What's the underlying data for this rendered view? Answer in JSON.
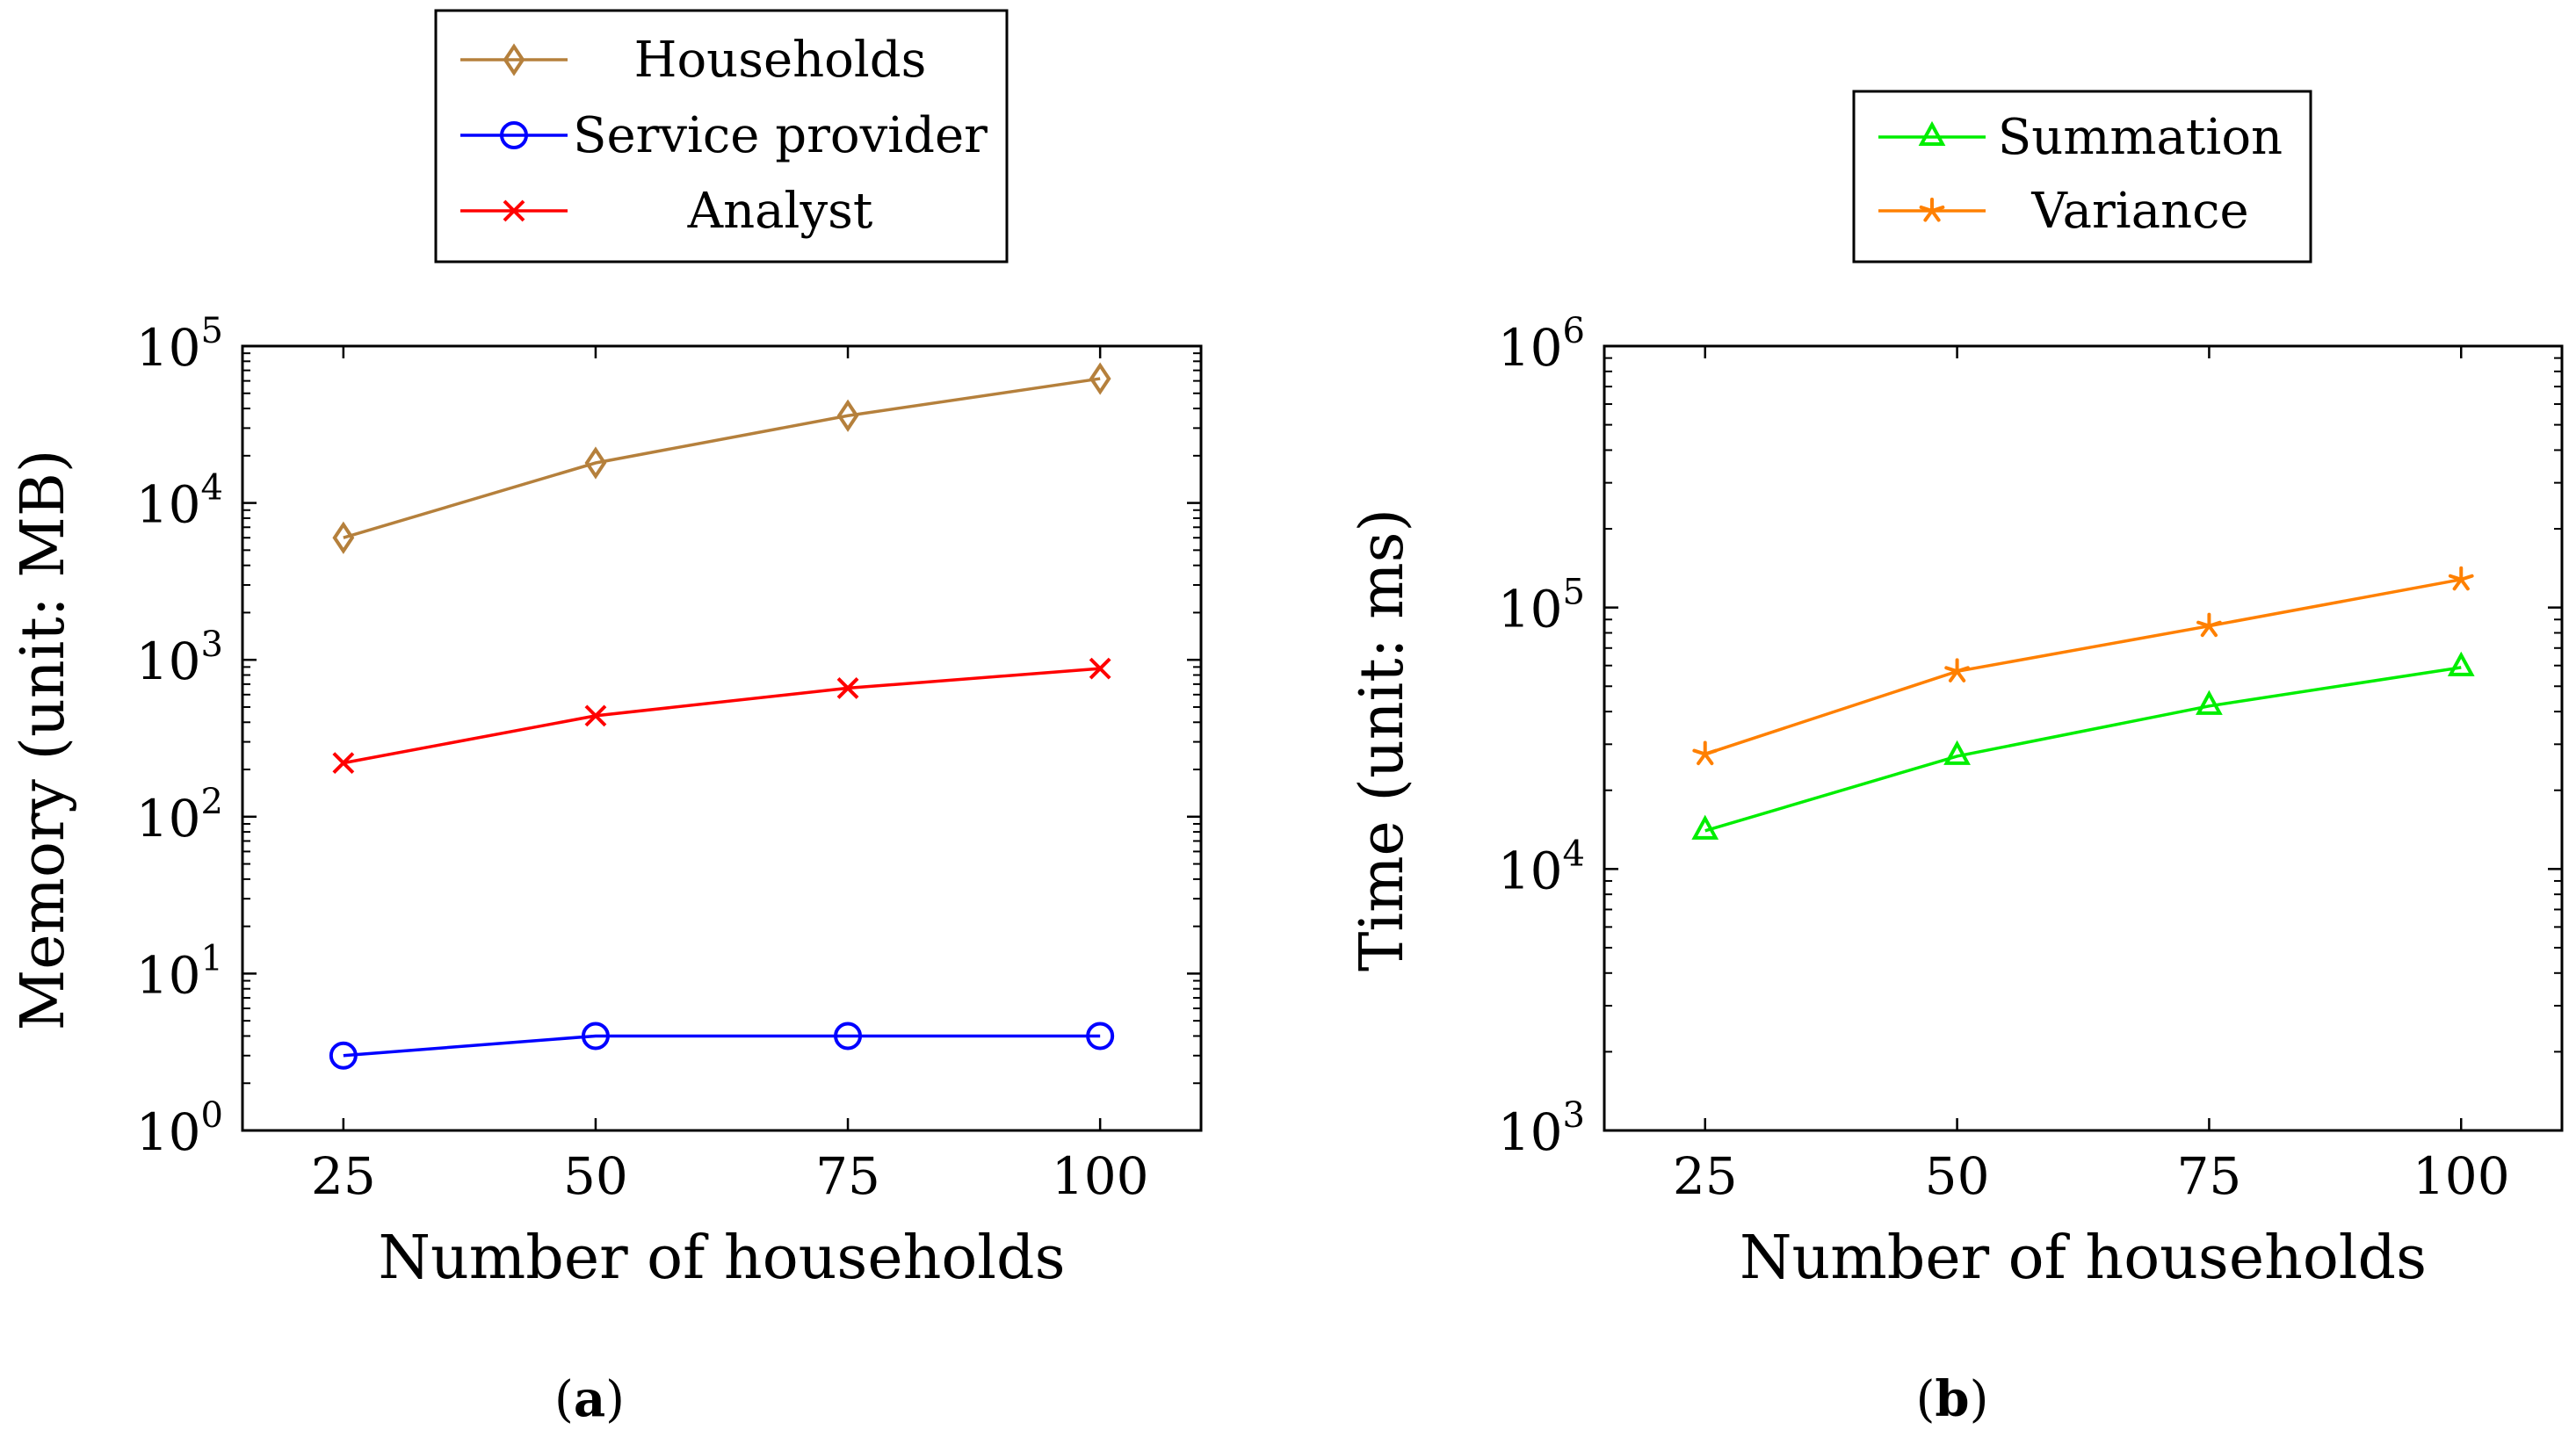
{
  "chart_data": [
    {
      "type": "line",
      "id": "a",
      "subfigure_label": "a",
      "xlabel": "Number of households",
      "ylabel": "Memory (unit: MB)",
      "yscale": "log",
      "x": [
        25,
        50,
        75,
        100
      ],
      "x_tick_labels": [
        "25",
        "50",
        "75",
        "100"
      ],
      "xlim": [
        15,
        110
      ],
      "ylim": [
        1,
        100000
      ],
      "y_tick_labels": [
        {
          "base": "10",
          "exp": "0"
        },
        {
          "base": "10",
          "exp": "1"
        },
        {
          "base": "10",
          "exp": "2"
        },
        {
          "base": "10",
          "exp": "3"
        },
        {
          "base": "10",
          "exp": "4"
        },
        {
          "base": "10",
          "exp": "5"
        }
      ],
      "legend": {
        "placement": "top-center",
        "entries": [
          "Households",
          "Service provider",
          "Analyst"
        ]
      },
      "series": [
        {
          "name": "Households",
          "color": "#b5803c",
          "marker": "diamond",
          "values": [
            6000,
            18000,
            36000,
            62000
          ]
        },
        {
          "name": "Service provider",
          "color": "#0000ff",
          "marker": "circle",
          "values": [
            3,
            4,
            4,
            4
          ]
        },
        {
          "name": "Analyst",
          "color": "#ff0000",
          "marker": "x",
          "values": [
            220,
            440,
            660,
            880
          ]
        }
      ]
    },
    {
      "type": "line",
      "id": "b",
      "subfigure_label": "b",
      "xlabel": "Number of households",
      "ylabel": "Time (unit: ms)",
      "yscale": "log",
      "x": [
        25,
        50,
        75,
        100
      ],
      "x_tick_labels": [
        "25",
        "50",
        "75",
        "100"
      ],
      "xlim": [
        15,
        110
      ],
      "ylim": [
        1000,
        1000000
      ],
      "y_tick_labels": [
        {
          "base": "10",
          "exp": "3"
        },
        {
          "base": "10",
          "exp": "4"
        },
        {
          "base": "10",
          "exp": "5"
        },
        {
          "base": "10",
          "exp": "6"
        }
      ],
      "legend": {
        "placement": "top-center",
        "entries": [
          "Summation",
          "Variance"
        ]
      },
      "series": [
        {
          "name": "Summation",
          "color": "#00ee00",
          "marker": "triangle",
          "values": [
            14000,
            27000,
            42000,
            59000
          ]
        },
        {
          "name": "Variance",
          "color": "#ff8000",
          "marker": "star",
          "values": [
            27500,
            57000,
            85000,
            128000
          ]
        }
      ]
    }
  ]
}
